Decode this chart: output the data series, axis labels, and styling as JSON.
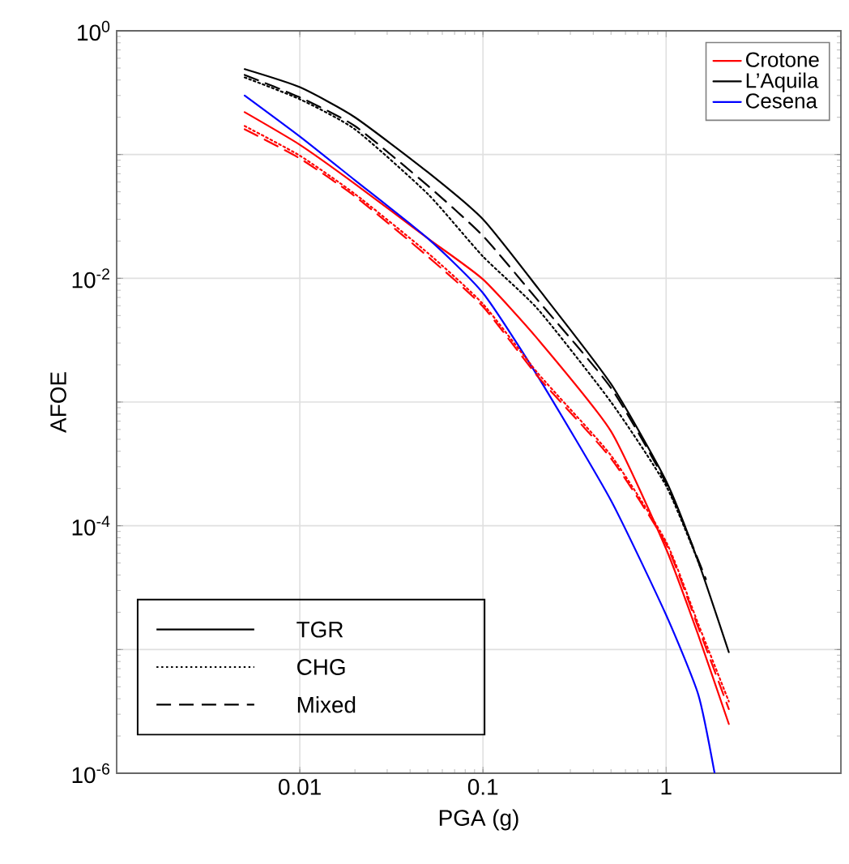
{
  "chart_data": {
    "type": "line",
    "xlabel": "PGA (g)",
    "ylabel": "AFOE",
    "log": "xy",
    "xlim": [
      0.001,
      9
    ],
    "ylim": [
      1e-06,
      1
    ],
    "xticks": [
      0.01,
      0.1,
      1
    ],
    "yticks": [
      {
        "value": 1e-06,
        "label": "10$^{-6}$"
      },
      {
        "value": 1e-05,
        "label": null
      },
      {
        "value": 0.0001,
        "label": "10$^{-4}$"
      },
      {
        "value": 0.001,
        "label": null
      },
      {
        "value": 0.01,
        "label": "10$^{-2}$"
      },
      {
        "value": 0.1,
        "label": null
      },
      {
        "value": 1,
        "label": "10$^{0}$"
      }
    ],
    "grid": true,
    "legend": "top right",
    "x": [
      0.005,
      0.01,
      0.02,
      0.05,
      0.1,
      0.2,
      0.5,
      1,
      1.5,
      2.2
    ],
    "series": [
      {
        "name": "Crotone",
        "color": "#ff0000",
        "line_style": "solid",
        "values": [
          0.22,
          0.12,
          0.058,
          0.021,
          0.0098,
          0.0032,
          0.00058,
          6.5e-05,
          1.3e-05,
          2.5e-06
        ]
      },
      {
        "name": "L’Aquila",
        "color": "#000000",
        "line_style": "solid",
        "values": [
          0.49,
          0.35,
          0.2,
          0.072,
          0.03,
          0.0083,
          0.0014,
          0.00023,
          5.1e-05,
          9.5e-06
        ]
      },
      {
        "name": "Cesena",
        "color": "#0000ff",
        "line_style": "solid",
        "x": [
          0.005,
          0.01,
          0.02,
          0.05,
          0.1,
          0.2,
          0.5,
          1,
          1.5,
          1.84
        ],
        "values": [
          0.3,
          0.14,
          0.062,
          0.021,
          0.0076,
          0.0016,
          0.00016,
          1.9e-05,
          4.3e-06,
          1e-06
        ]
      },
      {
        "color": "#000000",
        "line_style": "dotted",
        "x": [
          0.005,
          0.01,
          0.02,
          0.05,
          0.1,
          0.2,
          0.5,
          1,
          1.55
        ],
        "values": [
          0.42,
          0.28,
          0.16,
          0.048,
          0.015,
          0.0056,
          0.001,
          0.00021,
          4.5e-05
        ]
      },
      {
        "color": "#000000",
        "line_style": "dashed",
        "x": [
          0.005,
          0.01,
          0.02,
          0.05,
          0.1,
          0.2,
          0.5,
          1,
          1.65
        ],
        "values": [
          0.44,
          0.29,
          0.17,
          0.056,
          0.022,
          0.0066,
          0.0013,
          0.00022,
          3.7e-05
        ]
      },
      {
        "color": "#ff0000",
        "line_style": "dotted",
        "values": [
          0.17,
          0.098,
          0.048,
          0.016,
          0.0062,
          0.0017,
          0.00037,
          7.4e-05,
          1.6e-05,
          3.8e-06
        ]
      },
      {
        "color": "#ff0000",
        "line_style": "dashed",
        "values": [
          0.16,
          0.093,
          0.046,
          0.015,
          0.0059,
          0.0016,
          0.00035,
          7.1e-05,
          1.5e-05,
          3.3e-06
        ]
      }
    ],
    "annotations": [
      "TGR",
      "CHG",
      "Mixed"
    ]
  }
}
